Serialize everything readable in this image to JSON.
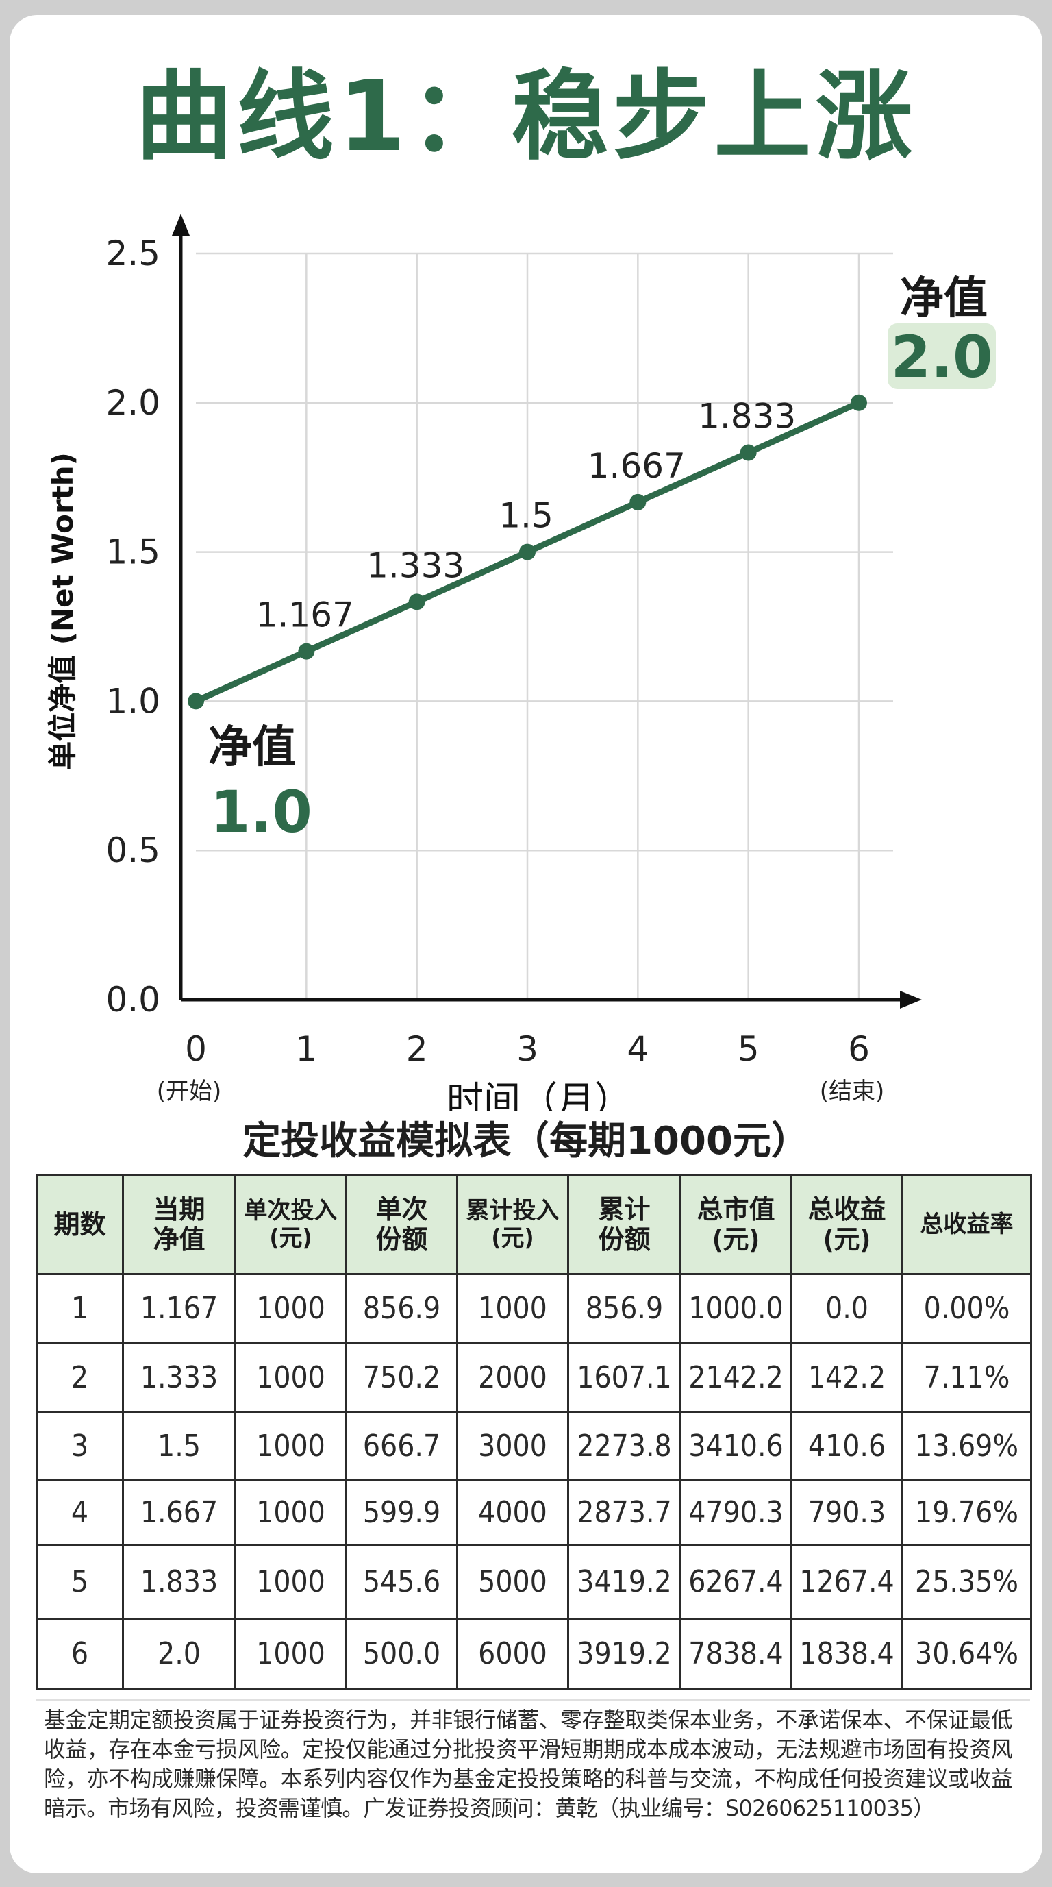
{
  "main_title": "曲线1：稳步上涨",
  "chart_data": {
    "type": "line",
    "ylabel": "单位净值 (Net Worth)",
    "xlabel": "时间（月）",
    "ylim": [
      0.0,
      2.5
    ],
    "yticks": [
      "0.0",
      "0.5",
      "1.0",
      "1.5",
      "2.0",
      "2.5"
    ],
    "x": [
      0,
      1,
      2,
      3,
      4,
      5,
      6
    ],
    "xticks": [
      "0",
      "1",
      "2",
      "3",
      "4",
      "5",
      "6"
    ],
    "xtick_sublabels": [
      "(开始)",
      "",
      "",
      "",
      "",
      "",
      "(结束)"
    ],
    "values": [
      1.0,
      1.167,
      1.333,
      1.5,
      1.667,
      1.833,
      2.0
    ],
    "point_labels": [
      "",
      "1.167",
      "1.333",
      "1.5",
      "1.667",
      "1.833",
      ""
    ],
    "annotations": [
      {
        "label": "净值",
        "value": "1.0"
      },
      {
        "label": "净值",
        "value": "2.0"
      }
    ],
    "grid": true,
    "line_color": "#2e6a4a",
    "highlight_color": "#dcecd8"
  },
  "table": {
    "title": "定投收益模拟表（每期1000元）",
    "headers": [
      [
        "期数"
      ],
      [
        "当期",
        "净值"
      ],
      [
        "单次投入",
        "(元)"
      ],
      [
        "单次",
        "份额"
      ],
      [
        "累计投入",
        "(元)"
      ],
      [
        "累计",
        "份额"
      ],
      [
        "总市值",
        "(元)"
      ],
      [
        "总收益",
        "(元)"
      ],
      [
        "总收益率"
      ]
    ],
    "rows": [
      [
        "1",
        "1.167",
        "1000",
        "856.9",
        "1000",
        "856.9",
        "1000.0",
        "0.0",
        "0.00%"
      ],
      [
        "2",
        "1.333",
        "1000",
        "750.2",
        "2000",
        "1607.1",
        "2142.2",
        "142.2",
        "7.11%"
      ],
      [
        "3",
        "1.5",
        "1000",
        "666.7",
        "3000",
        "2273.8",
        "3410.6",
        "410.6",
        "13.69%"
      ],
      [
        "4",
        "1.667",
        "1000",
        "599.9",
        "4000",
        "2873.7",
        "4790.3",
        "790.3",
        "19.76%"
      ],
      [
        "5",
        "1.833",
        "1000",
        "545.6",
        "5000",
        "3419.2",
        "6267.4",
        "1267.4",
        "25.35%"
      ],
      [
        "6",
        "2.0",
        "1000",
        "500.0",
        "6000",
        "3919.2",
        "7838.4",
        "1838.4",
        "30.64%"
      ]
    ],
    "header_bg": "#dcecd8"
  },
  "disclaimer": "基金定期定额投资属于证券投资行为，并非银行储蓄、零存整取类保本业务，不承诺保本、不保证最低收益，存在本金亏损风险。定投仅能通过分批投资平滑短期期成本成本波动，无法规避市场固有投资风险，亦不构成赚赚保障。本系列内容仅作为基金定投投策略的科普与交流，不构成任何投资建议或收益暗示。市场有风险，投资需谨慎。广发证券投资顾问：黄乾（执业编号：S0260625110035）"
}
